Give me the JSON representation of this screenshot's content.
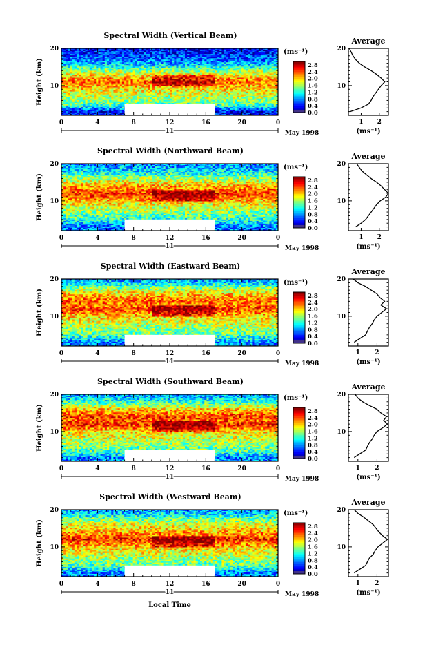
{
  "figure": {
    "x_axis_label": "Local Time",
    "x_tick_labels": [
      "0",
      "4",
      "8",
      "12",
      "16",
      "20",
      "0"
    ],
    "x_range_hours": [
      0,
      24
    ],
    "date_day": "11",
    "date_month_year": "May 1998",
    "y_axis_label": "Height (km)",
    "y_tick_labels": [
      "10",
      "20"
    ],
    "y_range_km": [
      2,
      20
    ],
    "colorbar_unit": "(ms⁻¹)",
    "colorbar_ticks": [
      "2.8",
      "2.4",
      "2.0",
      "1.6",
      "1.2",
      "0.8",
      "0.4",
      "0.0"
    ],
    "colorbar_range": [
      0,
      3.0
    ],
    "data_gap_hours": [
      7,
      17
    ],
    "data_gap_height_km": [
      2,
      5
    ],
    "profile_title": "Average",
    "profile_xlabel": "(ms⁻¹)"
  },
  "chart_data": [
    {
      "type": "heatmap",
      "title": "Spectral Width (Vertical Beam)",
      "profile": {
        "x_ticks": [
          "1",
          "2"
        ],
        "xlim": [
          0.3,
          2.5
        ],
        "heights": [
          3,
          4,
          5,
          6,
          7,
          8,
          9,
          10,
          11,
          12,
          13,
          14,
          15,
          16,
          17,
          18,
          19,
          20
        ],
        "values": [
          0.4,
          1.0,
          1.4,
          1.55,
          1.65,
          1.8,
          1.95,
          2.1,
          2.3,
          2.1,
          1.85,
          1.55,
          1.2,
          0.9,
          0.7,
          0.55,
          0.45,
          0.35
        ]
      }
    },
    {
      "type": "heatmap",
      "title": "Spectral Width (Northward Beam)",
      "profile": {
        "x_ticks": [
          "1",
          "2"
        ],
        "xlim": [
          0.3,
          2.5
        ],
        "heights": [
          3,
          4,
          5,
          6,
          7,
          8,
          9,
          10,
          11,
          12,
          13,
          14,
          15,
          16,
          17,
          18,
          19,
          20
        ],
        "values": [
          0.7,
          1.0,
          1.25,
          1.4,
          1.55,
          1.7,
          1.85,
          2.05,
          2.35,
          2.5,
          2.3,
          2.1,
          1.85,
          1.55,
          1.3,
          1.05,
          0.9,
          0.75
        ]
      }
    },
    {
      "type": "heatmap",
      "title": "Spectral Width (Eastward Beam)",
      "profile": {
        "x_ticks": [
          "1",
          "2"
        ],
        "xlim": [
          0.5,
          2.6
        ],
        "heights": [
          3,
          4,
          5,
          6,
          7,
          8,
          9,
          10,
          11,
          12,
          13,
          14,
          15,
          16,
          17,
          18,
          19,
          20
        ],
        "values": [
          0.8,
          1.1,
          1.4,
          1.5,
          1.6,
          1.75,
          1.85,
          2.0,
          2.25,
          2.5,
          2.2,
          2.4,
          2.15,
          2.0,
          1.7,
          1.4,
          1.0,
          0.75
        ]
      }
    },
    {
      "type": "heatmap",
      "title": "Spectral Width (Southward Beam)",
      "profile": {
        "x_ticks": [
          "1",
          "2"
        ],
        "xlim": [
          0.5,
          2.6
        ],
        "heights": [
          3,
          4,
          5,
          6,
          7,
          8,
          9,
          10,
          11,
          12,
          13,
          14,
          15,
          16,
          17,
          18,
          19,
          20
        ],
        "values": [
          0.8,
          1.1,
          1.4,
          1.5,
          1.6,
          1.75,
          1.85,
          2.0,
          2.3,
          2.55,
          2.35,
          2.5,
          2.2,
          2.0,
          1.6,
          1.25,
          1.0,
          0.85
        ]
      }
    },
    {
      "type": "heatmap",
      "title": "Spectral Width (Westward Beam)",
      "profile": {
        "x_ticks": [
          "1",
          "2"
        ],
        "xlim": [
          0.5,
          2.6
        ],
        "heights": [
          3,
          4,
          5,
          6,
          7,
          8,
          9,
          10,
          11,
          12,
          13,
          14,
          15,
          16,
          17,
          18,
          19,
          20
        ],
        "values": [
          0.8,
          1.1,
          1.4,
          1.5,
          1.6,
          1.8,
          1.9,
          2.05,
          2.3,
          2.55,
          2.3,
          2.1,
          1.95,
          1.8,
          1.55,
          1.3,
          1.0,
          0.8
        ]
      }
    }
  ]
}
